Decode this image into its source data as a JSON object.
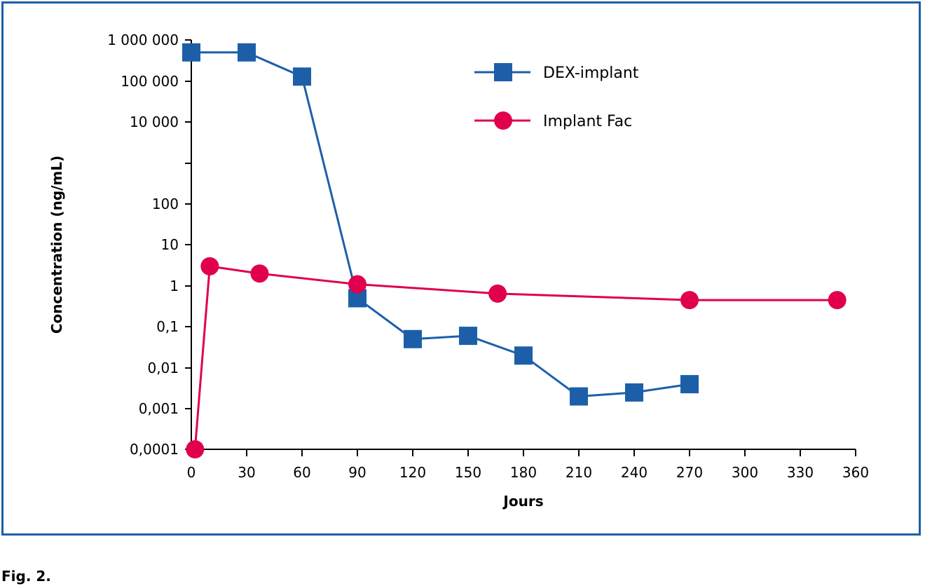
{
  "figure_caption": "Fig. 2.",
  "colors": {
    "frame": "#1c5fa8",
    "dex": "#1c5fa8",
    "fac": "#e0004d",
    "axis": "#000000"
  },
  "chart_data": {
    "type": "line",
    "title": "",
    "xlabel": "Jours",
    "ylabel": "Concentration (ng/mL)",
    "xlim": [
      0,
      360
    ],
    "x_ticks": [
      0,
      30,
      60,
      90,
      120,
      150,
      180,
      210,
      240,
      270,
      300,
      330,
      360
    ],
    "x_tick_labels": [
      "0",
      "30",
      "60",
      "90",
      "120",
      "150",
      "180",
      "210",
      "240",
      "270",
      "300",
      "330",
      "360"
    ],
    "y_scale": "log",
    "y_tick_labels": [
      "0,0001",
      "0,001",
      "0,01",
      "0,1",
      "1",
      "10",
      "100",
      "10 000",
      "100 000",
      "1 000 000"
    ],
    "grid": false,
    "legend_position": "top-right",
    "series": [
      {
        "name": "DEX-implant",
        "color": "#1c5fa8",
        "marker": "square",
        "x": [
          0,
          30,
          60,
          90,
          120,
          150,
          180,
          210,
          240,
          270
        ],
        "y": [
          500000,
          500000,
          130000,
          0.5,
          0.05,
          0.06,
          0.02,
          0.002,
          0.0025,
          0.004
        ]
      },
      {
        "name": "Implant Fac",
        "color": "#e0004d",
        "marker": "circle",
        "x": [
          2,
          10,
          37,
          90,
          166,
          270,
          350
        ],
        "y": [
          0.0001,
          3,
          2,
          1.1,
          0.65,
          0.45,
          0.45
        ]
      }
    ]
  }
}
